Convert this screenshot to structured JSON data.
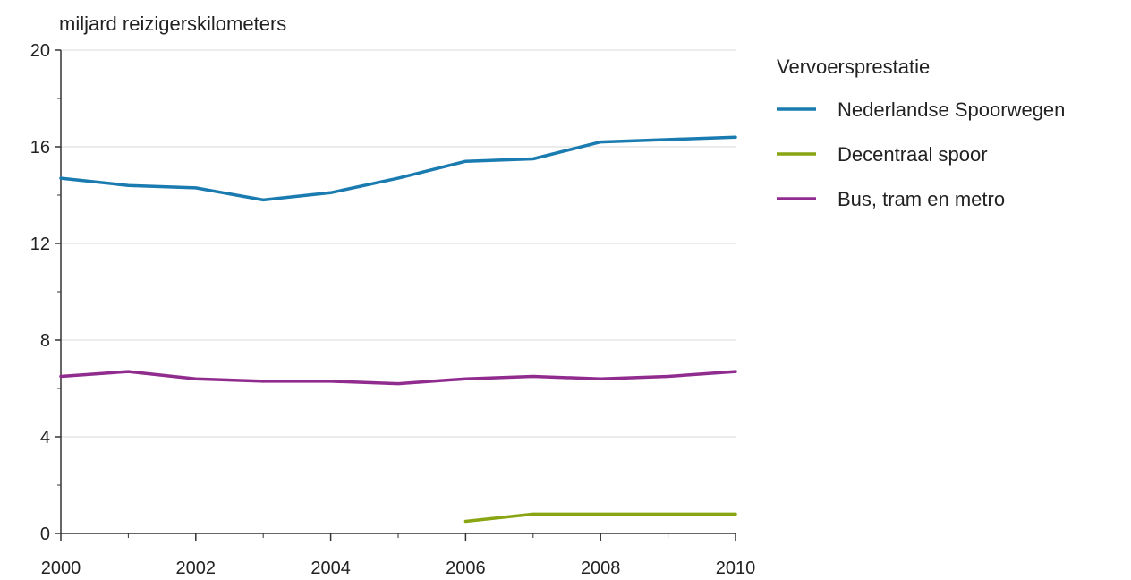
{
  "chart_data": {
    "type": "line",
    "title": "",
    "ylabel": "miljard reizigerskilometers",
    "xlabel": "",
    "ylim": [
      0,
      20
    ],
    "xlim": [
      2000,
      2010
    ],
    "y_ticks": [
      0,
      4,
      8,
      12,
      16,
      20
    ],
    "y_ticks_labels": [
      "0",
      "4",
      "8",
      "12",
      "16",
      "20"
    ],
    "y_minor_ticks": [
      2,
      6,
      10,
      14,
      18
    ],
    "x_ticks": [
      2000,
      2002,
      2004,
      2006,
      2008,
      2010
    ],
    "x_ticks_labels": [
      "2000",
      "2002",
      "2004",
      "2006",
      "2008",
      "2010"
    ],
    "x_minor_ticks": [
      2001,
      2003,
      2005,
      2007,
      2009
    ],
    "grid": "horizontal",
    "legend": {
      "title": "Vervoersprestatie",
      "placement": "right"
    },
    "series": [
      {
        "name": "Nederlandse Spoorwegen",
        "color": "#1a7bb0",
        "x": [
          2000,
          2001,
          2002,
          2003,
          2004,
          2005,
          2006,
          2007,
          2008,
          2009,
          2010
        ],
        "values": [
          14.7,
          14.4,
          14.3,
          13.8,
          14.1,
          14.7,
          15.4,
          15.5,
          16.2,
          16.3,
          16.4
        ]
      },
      {
        "name": "Decentraal spoor",
        "color": "#8aa514",
        "x": [
          2006,
          2007,
          2008,
          2009,
          2010
        ],
        "values": [
          0.5,
          0.8,
          0.8,
          0.8,
          0.8
        ]
      },
      {
        "name": "Bus, tram en metro",
        "color": "#912c8f",
        "x": [
          2000,
          2001,
          2002,
          2003,
          2004,
          2005,
          2006,
          2007,
          2008,
          2009,
          2010
        ],
        "values": [
          6.5,
          6.7,
          6.4,
          6.3,
          6.3,
          6.2,
          6.4,
          6.5,
          6.4,
          6.5,
          6.7
        ]
      }
    ]
  }
}
